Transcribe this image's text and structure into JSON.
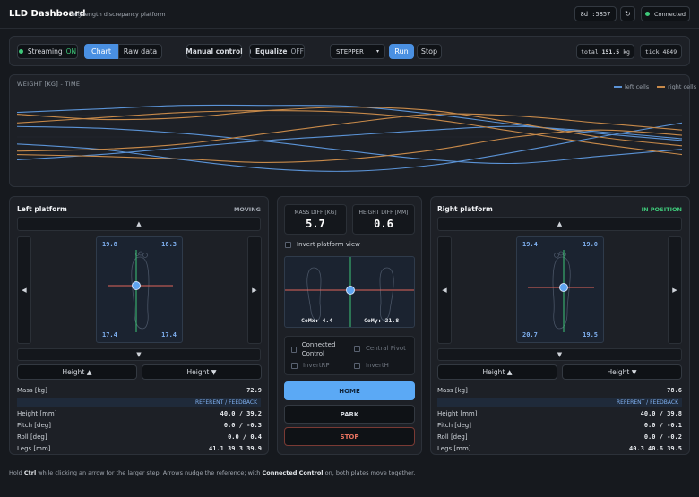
{
  "header": {
    "title": "LLD Dashboard",
    "subtitle": "leg length discrepancy platform",
    "port": "8d :5857",
    "refresh_icon": "refresh-icon",
    "status": "Connected"
  },
  "toolbar": {
    "streaming_label": "Streaming",
    "streaming_state": "ON",
    "tab_chart": "Chart",
    "tab_raw": "Raw data",
    "manual": "Manual control",
    "equalize_label": "Equalize",
    "equalize_state": "OFF",
    "mode": "STEPPER",
    "run": "Run",
    "stop": "Stop",
    "total_label": "total",
    "total_value": "151.5",
    "total_unit": "kg",
    "tick_label": "tick",
    "tick_value": "4849"
  },
  "chart_data": {
    "type": "line",
    "title": "WEIGHT [KG] - TIME",
    "legend_position": "top-right",
    "legend": [
      "left cells",
      "right cells"
    ],
    "colors": {
      "left": "#5b93d6",
      "right": "#c88a4a"
    },
    "grid": true,
    "series": [
      {
        "name": "left cells",
        "values": [
          0.42,
          0.36,
          0.24,
          0.14,
          0.11,
          0.18,
          0.33,
          0.5,
          0.66
        ]
      },
      {
        "name": "left cells",
        "values": [
          0.62,
          0.6,
          0.54,
          0.45,
          0.34,
          0.24,
          0.2,
          0.28,
          0.36
        ]
      },
      {
        "name": "left cells",
        "values": [
          0.24,
          0.3,
          0.38,
          0.46,
          0.52,
          0.58,
          0.62,
          0.56,
          0.48
        ]
      },
      {
        "name": "left cells",
        "values": [
          0.78,
          0.82,
          0.86,
          0.86,
          0.85,
          0.76,
          0.64,
          0.54,
          0.46
        ]
      },
      {
        "name": "right cells",
        "values": [
          0.3,
          0.28,
          0.25,
          0.21,
          0.25,
          0.35,
          0.5,
          0.58,
          0.52
        ]
      },
      {
        "name": "right cells",
        "values": [
          0.34,
          0.36,
          0.42,
          0.54,
          0.66,
          0.76,
          0.74,
          0.66,
          0.58
        ]
      },
      {
        "name": "right cells",
        "values": [
          0.76,
          0.7,
          0.72,
          0.8,
          0.84,
          0.8,
          0.66,
          0.5,
          0.4
        ]
      },
      {
        "name": "right cells",
        "values": [
          0.66,
          0.72,
          0.78,
          0.8,
          0.78,
          0.7,
          0.56,
          0.42,
          0.3
        ]
      }
    ]
  },
  "left": {
    "title": "Left platform",
    "state": "MOVING",
    "cells": [
      "19.8",
      "18.3",
      "17.4",
      "17.4"
    ],
    "height_up": "Height ▲",
    "height_down": "Height ▼",
    "mass_label": "Mass [kg]",
    "mass": "72.9",
    "ref_header": "REFERENT / FEEDBACK",
    "rows": [
      {
        "label": "Height [mm]",
        "value": "40.0 / 39.2"
      },
      {
        "label": "Pitch [deg]",
        "value": "0.0 / -0.3"
      },
      {
        "label": "Roll [deg]",
        "value": "0.0 / 0.4"
      },
      {
        "label": "Legs [mm]",
        "value": "41.1 39.3 39.9"
      }
    ]
  },
  "right": {
    "title": "Right platform",
    "state": "IN POSITION",
    "cells": [
      "19.4",
      "19.0",
      "20.7",
      "19.5"
    ],
    "height_up": "Height ▲",
    "height_down": "Height ▼",
    "mass_label": "Mass [kg]",
    "mass": "78.6",
    "ref_header": "REFERENT / FEEDBACK",
    "rows": [
      {
        "label": "Height [mm]",
        "value": "40.0 / 39.8"
      },
      {
        "label": "Pitch [deg]",
        "value": "0.0 / -0.1"
      },
      {
        "label": "Roll [deg]",
        "value": "0.0 / -0.2"
      },
      {
        "label": "Legs [mm]",
        "value": "40.3 40.6 39.5"
      }
    ]
  },
  "center": {
    "mass_diff_label": "MASS DIFF [KG]",
    "mass_diff": "5.7",
    "height_diff_label": "HEIGHT DIFF [MM]",
    "height_diff": "0.6",
    "invert_view": "Invert platform view",
    "comx": "CoMx: 4.4",
    "comy": "CoMy: 21.8",
    "connected_control": "Connected Control",
    "central_pivot": "Central Pivot",
    "invert_rp": "InvertRP",
    "invert_h": "InvertH",
    "home": "HOME",
    "park": "PARK",
    "stop": "STOP"
  },
  "footer": {
    "hint_pre": "Hold ",
    "ctrl": "Ctrl",
    "hint_mid": " while clicking an arrow for the larger step. Arrows nudge the reference; with ",
    "cc": "Connected Control",
    "hint_post": " on, both plates move together."
  },
  "arrows": {
    "up": "▲",
    "down": "▼",
    "left": "◀",
    "right": "▶"
  }
}
